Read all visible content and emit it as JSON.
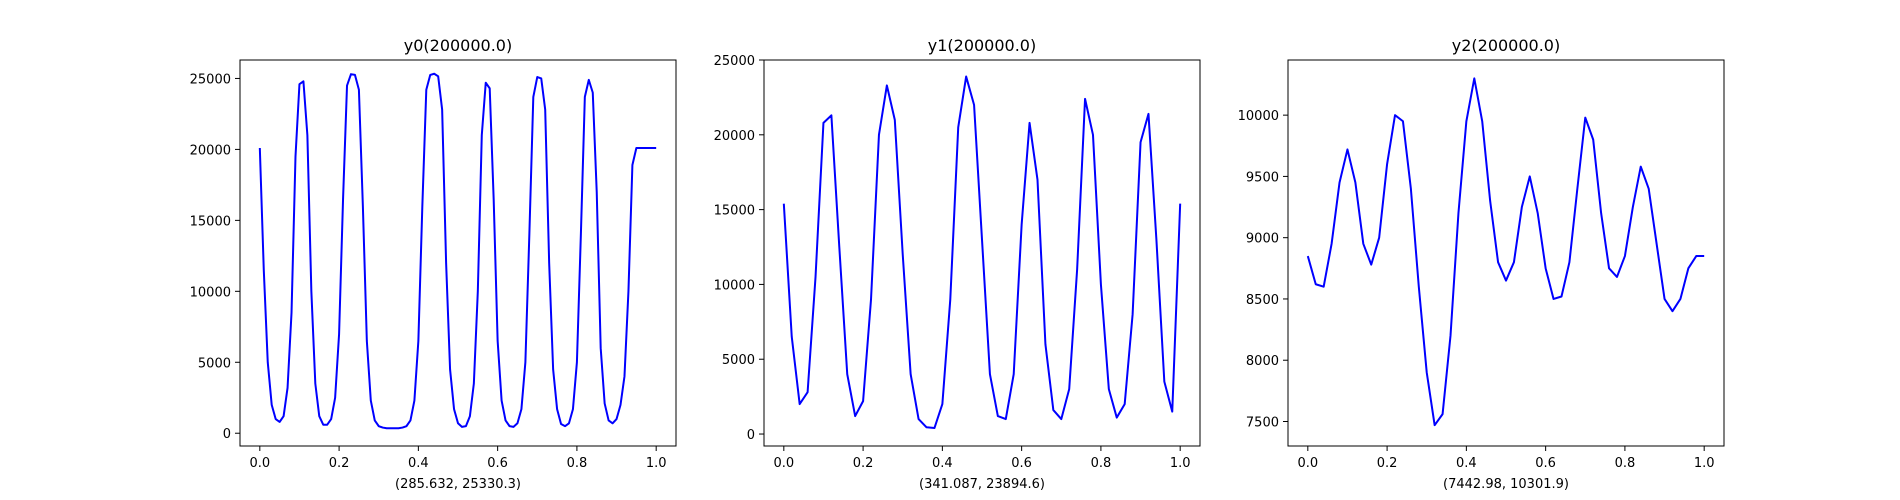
{
  "chart_data": [
    {
      "type": "line",
      "title": "y0(200000.0)",
      "xlabel": "(285.632, 25330.3)",
      "ylabel": "",
      "xlim": [
        -0.05,
        1.05
      ],
      "ylim": [
        -900,
        26300
      ],
      "xticks": [
        0.0,
        0.2,
        0.4,
        0.6,
        0.8,
        1.0
      ],
      "xtick_labels": [
        "0.0",
        "0.2",
        "0.4",
        "0.6",
        "0.8",
        "1.0"
      ],
      "yticks": [
        0,
        5000,
        10000,
        15000,
        20000,
        25000
      ],
      "ytick_labels": [
        "0",
        "5000",
        "10000",
        "15000",
        "20000",
        "25000"
      ],
      "grid": false,
      "color": "#0000ff",
      "x": [
        0.0,
        0.01,
        0.02,
        0.03,
        0.04,
        0.05,
        0.06,
        0.07,
        0.08,
        0.09,
        0.1,
        0.11,
        0.12,
        0.13,
        0.14,
        0.15,
        0.16,
        0.17,
        0.18,
        0.19,
        0.2,
        0.21,
        0.22,
        0.23,
        0.24,
        0.25,
        0.26,
        0.27,
        0.28,
        0.29,
        0.3,
        0.31,
        0.32,
        0.33,
        0.34,
        0.35,
        0.36,
        0.37,
        0.38,
        0.39,
        0.4,
        0.41,
        0.42,
        0.43,
        0.44,
        0.45,
        0.46,
        0.47,
        0.48,
        0.49,
        0.5,
        0.51,
        0.52,
        0.53,
        0.54,
        0.55,
        0.56,
        0.57,
        0.58,
        0.59,
        0.6,
        0.61,
        0.62,
        0.63,
        0.64,
        0.65,
        0.66,
        0.67,
        0.68,
        0.69,
        0.7,
        0.71,
        0.72,
        0.73,
        0.74,
        0.75,
        0.76,
        0.77,
        0.78,
        0.79,
        0.8,
        0.81,
        0.82,
        0.83,
        0.84,
        0.85,
        0.86,
        0.87,
        0.88,
        0.89,
        0.9,
        0.91,
        0.92,
        0.93,
        0.94,
        0.95,
        0.96,
        0.97,
        0.98,
        0.99,
        1.0
      ],
      "y": [
        20100,
        11500,
        5000,
        2000,
        1000,
        800,
        1200,
        3200,
        8500,
        19500,
        24600,
        24800,
        21000,
        10000,
        3500,
        1200,
        600,
        600,
        1000,
        2500,
        7000,
        16500,
        24500,
        25300,
        25250,
        24200,
        16000,
        6500,
        2300,
        900,
        500,
        400,
        350,
        350,
        350,
        350,
        400,
        500,
        900,
        2300,
        6500,
        16000,
        24200,
        25250,
        25330,
        25150,
        22800,
        12000,
        4500,
        1700,
        700,
        450,
        500,
        1200,
        3500,
        10000,
        21000,
        24700,
        24300,
        16500,
        6500,
        2300,
        900,
        500,
        450,
        700,
        1700,
        5000,
        14000,
        23700,
        25100,
        25000,
        22800,
        12000,
        4500,
        1700,
        650,
        500,
        700,
        1700,
        5000,
        14000,
        23700,
        24900,
        24000,
        17000,
        6000,
        2100,
        900,
        700,
        1000,
        2000,
        4000,
        10000,
        18900,
        20100,
        20100,
        20100,
        20100,
        20100,
        20100
      ]
    },
    {
      "type": "line",
      "title": "y1(200000.0)",
      "xlabel": "(341.087, 23894.6)",
      "ylabel": "",
      "xlim": [
        -0.05,
        1.05
      ],
      "ylim": [
        -800,
        25000
      ],
      "xticks": [
        0.0,
        0.2,
        0.4,
        0.6,
        0.8,
        1.0
      ],
      "xtick_labels": [
        "0.0",
        "0.2",
        "0.4",
        "0.6",
        "0.8",
        "1.0"
      ],
      "yticks": [
        0,
        5000,
        10000,
        15000,
        20000,
        25000
      ],
      "ytick_labels": [
        "0",
        "5000",
        "10000",
        "15000",
        "20000",
        "25000"
      ],
      "grid": false,
      "color": "#0000ff",
      "x": [
        0.0,
        0.02,
        0.04,
        0.06,
        0.08,
        0.1,
        0.12,
        0.14,
        0.16,
        0.18,
        0.2,
        0.22,
        0.24,
        0.26,
        0.28,
        0.3,
        0.32,
        0.34,
        0.36,
        0.38,
        0.4,
        0.42,
        0.44,
        0.46,
        0.48,
        0.5,
        0.52,
        0.54,
        0.56,
        0.58,
        0.6,
        0.62,
        0.64,
        0.66,
        0.68,
        0.7,
        0.72,
        0.74,
        0.76,
        0.78,
        0.8,
        0.82,
        0.84,
        0.86,
        0.88,
        0.9,
        0.92,
        0.94,
        0.96,
        0.98,
        1.0
      ],
      "y": [
        15400,
        6500,
        2000,
        2800,
        10500,
        20800,
        21300,
        12500,
        4000,
        1200,
        2200,
        9000,
        20000,
        23300,
        21000,
        12000,
        4000,
        1000,
        450,
        400,
        2000,
        9000,
        20500,
        23894,
        22000,
        13000,
        4000,
        1200,
        1000,
        4000,
        14000,
        20800,
        17000,
        6000,
        1600,
        1000,
        3000,
        11000,
        22400,
        20000,
        10000,
        3000,
        1100,
        2000,
        8000,
        19500,
        21400,
        13000,
        3500,
        1500,
        15400
      ]
    },
    {
      "type": "line",
      "title": "y2(200000.0)",
      "xlabel": "(7442.98, 10301.9)",
      "ylabel": "",
      "xlim": [
        -0.05,
        1.05
      ],
      "ylim": [
        7300,
        10450
      ],
      "xticks": [
        0.0,
        0.2,
        0.4,
        0.6,
        0.8,
        1.0
      ],
      "xtick_labels": [
        "0.0",
        "0.2",
        "0.4",
        "0.6",
        "0.8",
        "1.0"
      ],
      "yticks": [
        7500,
        8000,
        8500,
        9000,
        9500,
        10000
      ],
      "ytick_labels": [
        "7500",
        "8000",
        "8500",
        "9000",
        "9500",
        "10000"
      ],
      "grid": false,
      "color": "#0000ff",
      "x": [
        0.0,
        0.02,
        0.04,
        0.06,
        0.08,
        0.1,
        0.12,
        0.14,
        0.16,
        0.18,
        0.2,
        0.22,
        0.24,
        0.26,
        0.28,
        0.3,
        0.32,
        0.34,
        0.36,
        0.38,
        0.4,
        0.42,
        0.44,
        0.46,
        0.48,
        0.5,
        0.52,
        0.54,
        0.56,
        0.58,
        0.6,
        0.62,
        0.64,
        0.66,
        0.68,
        0.7,
        0.72,
        0.74,
        0.76,
        0.78,
        0.8,
        0.82,
        0.84,
        0.86,
        0.88,
        0.9,
        0.92,
        0.94,
        0.96,
        0.98,
        1.0
      ],
      "y": [
        8850,
        8620,
        8600,
        8950,
        9450,
        9720,
        9450,
        8950,
        8780,
        9000,
        9600,
        10000,
        9950,
        9400,
        8600,
        7900,
        7470,
        7560,
        8200,
        9200,
        9950,
        10300,
        9950,
        9300,
        8800,
        8650,
        8800,
        9250,
        9500,
        9200,
        8750,
        8500,
        8520,
        8800,
        9400,
        9980,
        9800,
        9200,
        8750,
        8680,
        8850,
        9250,
        9580,
        9400,
        8950,
        8500,
        8400,
        8500,
        8750,
        8850,
        8850
      ]
    }
  ]
}
